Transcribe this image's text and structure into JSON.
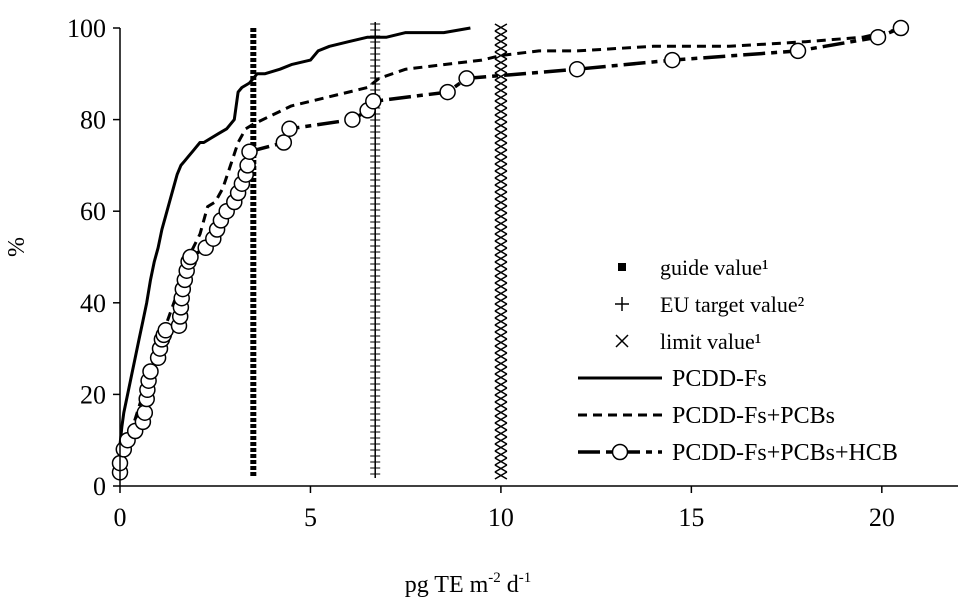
{
  "chart_data": {
    "type": "line",
    "title": "",
    "xlabel": "pg TE m-2 d-1",
    "xlabel_parts": {
      "base": "pg TE m",
      "sup1": "-2",
      "mid": " d",
      "sup2": "-1"
    },
    "ylabel": "%",
    "xlim": [
      0,
      22
    ],
    "ylim": [
      0,
      100
    ],
    "x_ticks": [
      0,
      5,
      10,
      15,
      20
    ],
    "y_ticks": [
      0,
      20,
      40,
      60,
      80,
      100
    ],
    "grid": false,
    "legend_position": "right",
    "reference_lines": [
      {
        "name": "guide value¹",
        "x": 3.5,
        "marker": "square"
      },
      {
        "name": "EU target value²",
        "x": 6.7,
        "marker": "plus"
      },
      {
        "name": "limit value¹",
        "x": 10.0,
        "marker": "cross"
      }
    ],
    "series": [
      {
        "name": "PCDD-Fs",
        "style": "solid",
        "x": [
          0.0,
          0.05,
          0.1,
          0.2,
          0.3,
          0.4,
          0.5,
          0.6,
          0.7,
          0.8,
          0.9,
          1.0,
          1.1,
          1.2,
          1.3,
          1.4,
          1.5,
          1.6,
          1.7,
          1.8,
          1.9,
          2.0,
          2.1,
          2.2,
          2.4,
          2.6,
          2.8,
          3.0,
          3.1,
          3.2,
          3.4,
          3.5,
          3.6,
          3.8,
          4.2,
          4.5,
          5.0,
          5.2,
          5.5,
          6.0,
          6.5,
          7.0,
          7.5,
          8.0,
          8.5,
          9.2
        ],
        "y": [
          9,
          13,
          16,
          20,
          24,
          28,
          32,
          36,
          40,
          45,
          49,
          52,
          56,
          59,
          62,
          65,
          68,
          70,
          71,
          72,
          73,
          74,
          75,
          75,
          76,
          77,
          78,
          80,
          86,
          87,
          88,
          89,
          90,
          90,
          91,
          92,
          93,
          95,
          96,
          97,
          98,
          98,
          99,
          99,
          99,
          100
        ]
      },
      {
        "name": "PCDD-Fs+PCBs",
        "style": "dashed",
        "x": [
          0.0,
          0.3,
          0.6,
          0.9,
          1.2,
          1.5,
          1.8,
          2.1,
          2.3,
          2.5,
          2.7,
          2.9,
          3.1,
          3.3,
          3.5,
          4.0,
          4.5,
          5.5,
          6.5,
          6.8,
          7.5,
          8.5,
          9.5,
          10.0,
          11.0,
          12.0,
          14.0,
          16.0,
          18.0,
          19.5,
          20.6
        ],
        "y": [
          5,
          12,
          20,
          28,
          35,
          42,
          50,
          55,
          61,
          62,
          65,
          70,
          75,
          78,
          79,
          81,
          83,
          85,
          87,
          89,
          91,
          92,
          93,
          94,
          95,
          95,
          96,
          96,
          97,
          98,
          100
        ]
      },
      {
        "name": "PCDD-Fs+PCBs+HCB",
        "style": "dash-dot",
        "x": [
          0.0,
          0.0,
          0.1,
          0.2,
          0.4,
          0.6,
          0.65,
          0.7,
          0.72,
          0.75,
          0.8,
          1.0,
          1.05,
          1.1,
          1.15,
          1.2,
          1.55,
          1.58,
          1.6,
          1.62,
          1.65,
          1.7,
          1.75,
          1.8,
          1.85,
          2.25,
          2.45,
          2.55,
          2.65,
          2.8,
          3.0,
          3.1,
          3.2,
          3.3,
          3.35,
          3.4,
          4.3,
          4.45,
          6.1,
          6.5,
          6.65,
          8.6,
          9.1,
          12.0,
          14.5,
          17.8,
          19.9,
          20.5
        ],
        "y": [
          3,
          5,
          8,
          10,
          12,
          14,
          16,
          19,
          21,
          23,
          25,
          28,
          30,
          32,
          33,
          34,
          35,
          37,
          39,
          41,
          43,
          45,
          47,
          49,
          50,
          52,
          54,
          56,
          58,
          60,
          62,
          64,
          66,
          68,
          70,
          73,
          75,
          78,
          80,
          82,
          84,
          86,
          89,
          91,
          93,
          95,
          98,
          100
        ]
      }
    ]
  }
}
